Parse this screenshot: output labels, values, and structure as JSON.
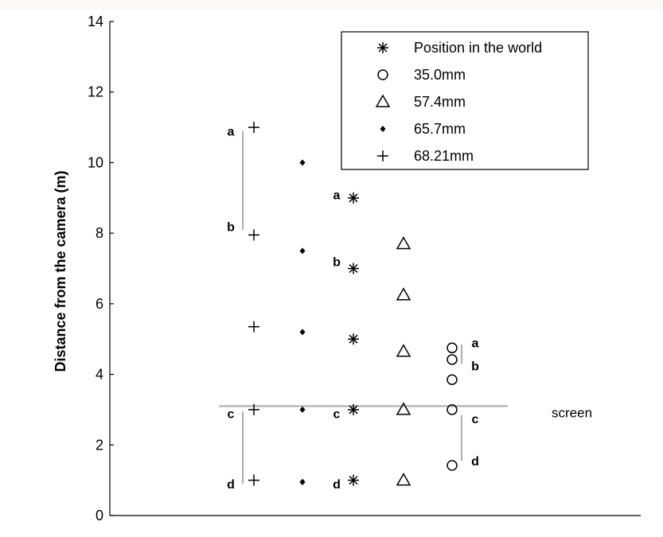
{
  "chart_data": {
    "type": "scatter",
    "ylabel": "Distance from the camera (m)",
    "ylim": [
      0,
      14
    ],
    "yticks": [
      0,
      2,
      4,
      6,
      8,
      10,
      12,
      14
    ],
    "series": [
      {
        "name": "Position in the world",
        "marker": "asterisk",
        "x": [
          4,
          4,
          4,
          4,
          4
        ],
        "y": [
          9.0,
          7.0,
          5.0,
          3.0,
          1.0
        ]
      },
      {
        "name": "35.0mm",
        "marker": "circle",
        "x": [
          6,
          6,
          6,
          6,
          6
        ],
        "y": [
          4.75,
          4.42,
          3.85,
          3.0,
          1.42
        ]
      },
      {
        "name": "57.4mm",
        "marker": "triangle",
        "x": [
          5,
          5,
          5,
          5,
          5
        ],
        "y": [
          7.7,
          6.25,
          4.65,
          3.0,
          1.0
        ]
      },
      {
        "name": "65.7mm",
        "marker": "diamond",
        "x": [
          3,
          3,
          3,
          3,
          3,
          3
        ],
        "y": [
          10.0,
          7.5,
          5.2,
          3.0,
          0.95,
          0.95
        ]
      },
      {
        "name": "68.21mm",
        "marker": "plus",
        "x": [
          2,
          2,
          2,
          2,
          2
        ],
        "y": [
          11.0,
          7.95,
          5.35,
          3.0,
          1.0
        ]
      }
    ],
    "reference_line": {
      "y": 3.1,
      "label": "screen"
    },
    "annotations": [
      {
        "text": "a",
        "x": 1.75,
        "y": 10.9
      },
      {
        "text": "b",
        "x": 1.75,
        "y": 8.2
      },
      {
        "text": "c",
        "x": 1.75,
        "y": 2.9
      },
      {
        "text": "d",
        "x": 1.75,
        "y": 0.9
      },
      {
        "text": "a",
        "x": 3.75,
        "y": 9.1
      },
      {
        "text": "b",
        "x": 3.75,
        "y": 7.2
      },
      {
        "text": "c",
        "x": 3.75,
        "y": 2.9
      },
      {
        "text": "d",
        "x": 3.75,
        "y": 0.9
      },
      {
        "text": "a",
        "x": 6.35,
        "y": 4.9
      },
      {
        "text": "b",
        "x": 6.35,
        "y": 4.25
      },
      {
        "text": "c",
        "x": 6.35,
        "y": 2.75
      },
      {
        "text": "d",
        "x": 6.35,
        "y": 1.55
      }
    ],
    "bracket_lines": [
      {
        "x": 1.85,
        "y1": 8.1,
        "y2": 10.9
      },
      {
        "x": 1.85,
        "y1": 0.9,
        "y2": 2.95
      },
      {
        "x": 6.2,
        "y1": 4.3,
        "y2": 4.85
      },
      {
        "x": 6.2,
        "y1": 1.55,
        "y2": 2.85
      }
    ],
    "legend_position": "top-right",
    "grid": false
  }
}
